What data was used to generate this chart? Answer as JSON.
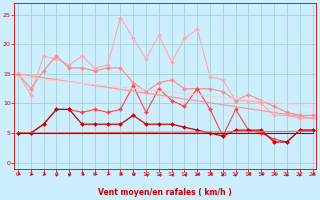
{
  "xlabel": "Vent moyen/en rafales ( km/h )",
  "background_color": "#cceeff",
  "grid_color": "#99cccc",
  "x_ticks": [
    0,
    1,
    2,
    3,
    4,
    5,
    6,
    7,
    8,
    9,
    10,
    11,
    12,
    13,
    14,
    15,
    16,
    17,
    18,
    19,
    20,
    21,
    22,
    23
  ],
  "y_ticks": [
    0,
    5,
    10,
    15,
    20,
    25
  ],
  "ylim": [
    -1,
    27
  ],
  "xlim": [
    -0.3,
    23.3
  ],
  "lines": [
    {
      "x": [
        0,
        1,
        2,
        3,
        4,
        5,
        6,
        7,
        8,
        9,
        10,
        11,
        12,
        13,
        14,
        15,
        16,
        17,
        18,
        19,
        20,
        21,
        22,
        23
      ],
      "y": [
        15.0,
        11.5,
        18.0,
        17.5,
        16.5,
        18.0,
        16.0,
        16.5,
        24.5,
        21.0,
        17.5,
        21.5,
        17.0,
        21.0,
        22.5,
        14.5,
        14.0,
        10.5,
        10.5,
        10.0,
        8.0,
        8.0,
        7.5,
        7.5
      ],
      "color": "#ffaaaa",
      "linewidth": 0.8,
      "marker": "D",
      "markersize": 2.0
    },
    {
      "x": [
        0,
        1,
        2,
        3,
        4,
        5,
        6,
        7,
        8,
        9,
        10,
        11,
        12,
        13,
        14,
        15,
        16,
        17,
        18,
        19,
        20,
        21,
        22,
        23
      ],
      "y": [
        15.0,
        12.5,
        15.5,
        18.0,
        16.0,
        16.0,
        15.5,
        16.0,
        16.0,
        13.5,
        12.0,
        13.5,
        14.0,
        12.5,
        12.5,
        12.5,
        12.0,
        10.5,
        11.5,
        10.5,
        9.5,
        8.5,
        8.0,
        8.0
      ],
      "color": "#ff8888",
      "linewidth": 0.8,
      "marker": "D",
      "markersize": 2.0
    },
    {
      "x": [
        0,
        1,
        2,
        3,
        4,
        5,
        6,
        7,
        8,
        9,
        10,
        11,
        12,
        13,
        14,
        15,
        16,
        17,
        18,
        19,
        20,
        21,
        22,
        23
      ],
      "y": [
        5.0,
        5.0,
        6.5,
        9.0,
        9.0,
        8.5,
        9.0,
        8.5,
        9.0,
        13.0,
        8.5,
        12.5,
        10.5,
        9.5,
        12.5,
        9.0,
        4.5,
        9.0,
        5.5,
        5.0,
        4.0,
        3.5,
        5.5,
        5.5
      ],
      "color": "#ff4444",
      "linewidth": 0.8,
      "marker": "D",
      "markersize": 2.0
    },
    {
      "x": [
        0,
        1,
        2,
        3,
        4,
        5,
        6,
        7,
        8,
        9,
        10,
        11,
        12,
        13,
        14,
        15,
        16,
        17,
        18,
        19,
        20,
        21,
        22,
        23
      ],
      "y": [
        5.0,
        5.0,
        6.5,
        9.0,
        9.0,
        6.5,
        6.5,
        6.5,
        6.5,
        8.0,
        6.5,
        6.5,
        6.5,
        6.0,
        5.5,
        5.0,
        4.5,
        5.5,
        5.5,
        5.5,
        3.5,
        3.5,
        5.5,
        5.5
      ],
      "color": "#cc0000",
      "linewidth": 0.9,
      "marker": "D",
      "markersize": 2.0
    },
    {
      "x": [
        0,
        23
      ],
      "y": [
        15.0,
        7.5
      ],
      "color": "#ff9999",
      "linewidth": 0.9,
      "marker": null,
      "markersize": 0
    },
    {
      "x": [
        0,
        23
      ],
      "y": [
        14.5,
        9.5
      ],
      "color": "#ffcccc",
      "linewidth": 0.8,
      "marker": null,
      "markersize": 0
    },
    {
      "x": [
        0,
        23
      ],
      "y": [
        5.0,
        5.3
      ],
      "color": "#ff6666",
      "linewidth": 0.9,
      "marker": null,
      "markersize": 0
    },
    {
      "x": [
        0,
        23
      ],
      "y": [
        5.0,
        5.0
      ],
      "color": "#aa0000",
      "linewidth": 0.8,
      "marker": null,
      "markersize": 0
    }
  ],
  "wind_dirs": [
    225,
    225,
    225,
    180,
    180,
    225,
    225,
    225,
    225,
    270,
    315,
    315,
    315,
    315,
    270,
    225,
    180,
    180,
    225,
    225,
    225,
    180,
    180,
    225
  ],
  "arrow_color": "#cc0000"
}
